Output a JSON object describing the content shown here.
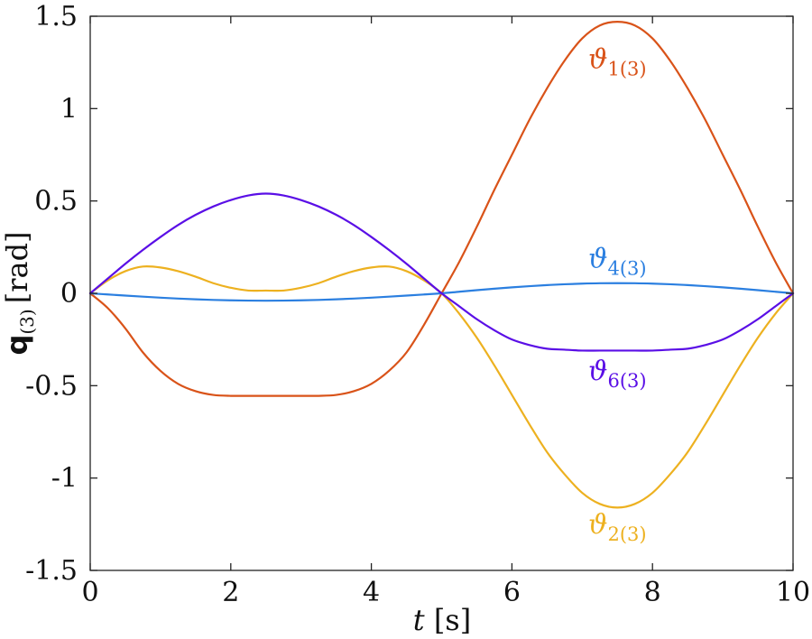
{
  "chart_data": {
    "type": "line",
    "title": "",
    "xlabel": {
      "var": "t",
      "unit": "[s]"
    },
    "ylabel": {
      "main": "q",
      "sub": "(3)",
      "unit": "[rad]"
    },
    "xlim": [
      0,
      10
    ],
    "ylim": [
      -1.5,
      1.5
    ],
    "xticks": [
      0,
      2,
      4,
      6,
      8,
      10
    ],
    "xtick_labels": [
      "0",
      "2",
      "4",
      "6",
      "8",
      "10"
    ],
    "yticks": [
      1.5,
      1,
      0.5,
      0,
      -0.5,
      -1,
      -1.5
    ],
    "ytick_labels": [
      "1.5",
      "1",
      "0.5",
      "0",
      "-0.5",
      "-1",
      "-1.5"
    ],
    "grid": false,
    "legend": "inline labels",
    "x": [
      0,
      0.25,
      0.5,
      0.75,
      1,
      1.25,
      1.5,
      1.75,
      2,
      2.25,
      2.5,
      2.75,
      3,
      3.25,
      3.5,
      3.75,
      4,
      4.25,
      4.5,
      4.75,
      5,
      5.25,
      5.5,
      5.75,
      6,
      6.25,
      6.5,
      6.75,
      7,
      7.25,
      7.5,
      7.75,
      8,
      8.25,
      8.5,
      8.75,
      9,
      9.25,
      9.5,
      9.75,
      10
    ],
    "series": [
      {
        "name": "ϑ1(3)",
        "label": {
          "symbol": "ϑ",
          "sub": "1(3)",
          "x": 7.5,
          "y": 1.22
        },
        "color": "#d95319",
        "values": [
          0,
          -0.08,
          -0.19,
          -0.32,
          -0.42,
          -0.49,
          -0.53,
          -0.55,
          -0.555,
          -0.555,
          -0.555,
          -0.555,
          -0.555,
          -0.555,
          -0.55,
          -0.53,
          -0.49,
          -0.42,
          -0.32,
          -0.17,
          0,
          0.17,
          0.36,
          0.56,
          0.75,
          0.94,
          1.11,
          1.26,
          1.38,
          1.45,
          1.47,
          1.45,
          1.38,
          1.26,
          1.11,
          0.94,
          0.75,
          0.56,
          0.36,
          0.17,
          0
        ]
      },
      {
        "name": "ϑ2(3)",
        "label": {
          "symbol": "ϑ",
          "sub": "2(3)",
          "x": 7.5,
          "y": -1.3
        },
        "color": "#edb120",
        "values": [
          0,
          0.07,
          0.12,
          0.145,
          0.14,
          0.12,
          0.09,
          0.055,
          0.03,
          0.015,
          0.015,
          0.015,
          0.03,
          0.055,
          0.09,
          0.12,
          0.14,
          0.145,
          0.12,
          0.07,
          0,
          -0.11,
          -0.24,
          -0.39,
          -0.55,
          -0.71,
          -0.86,
          -0.98,
          -1.08,
          -1.14,
          -1.16,
          -1.14,
          -1.08,
          -0.98,
          -0.86,
          -0.71,
          -0.55,
          -0.39,
          -0.24,
          -0.11,
          0
        ]
      },
      {
        "name": "ϑ4(3)",
        "label": {
          "symbol": "ϑ",
          "sub": "4(3)",
          "x": 7.5,
          "y": 0.14
        },
        "color": "#2b7fe0",
        "values": [
          0,
          -0.0062,
          -0.0123,
          -0.0181,
          -0.0235,
          -0.0283,
          -0.0324,
          -0.0357,
          -0.038,
          -0.0395,
          -0.04,
          -0.0395,
          -0.038,
          -0.0357,
          -0.0324,
          -0.0283,
          -0.0235,
          -0.0181,
          -0.0123,
          -0.0062,
          0,
          0.0086,
          0.017,
          0.025,
          0.0323,
          0.0389,
          0.0445,
          0.0491,
          0.0525,
          0.0546,
          0.055,
          0.0546,
          0.0525,
          0.0491,
          0.0445,
          0.0389,
          0.0323,
          0.025,
          0.017,
          0.0086,
          0
        ]
      },
      {
        "name": "ϑ6(3)",
        "label": {
          "symbol": "ϑ",
          "sub": "6(3)",
          "x": 7.5,
          "y": -0.47
        },
        "color": "#5a0fe6",
        "values": [
          0,
          0.08,
          0.16,
          0.235,
          0.305,
          0.37,
          0.425,
          0.47,
          0.505,
          0.53,
          0.54,
          0.53,
          0.505,
          0.47,
          0.425,
          0.37,
          0.305,
          0.235,
          0.16,
          0.08,
          0,
          -0.07,
          -0.14,
          -0.2,
          -0.25,
          -0.28,
          -0.3,
          -0.305,
          -0.31,
          -0.31,
          -0.31,
          -0.31,
          -0.31,
          -0.305,
          -0.3,
          -0.28,
          -0.25,
          -0.2,
          -0.14,
          -0.07,
          0
        ]
      }
    ]
  }
}
